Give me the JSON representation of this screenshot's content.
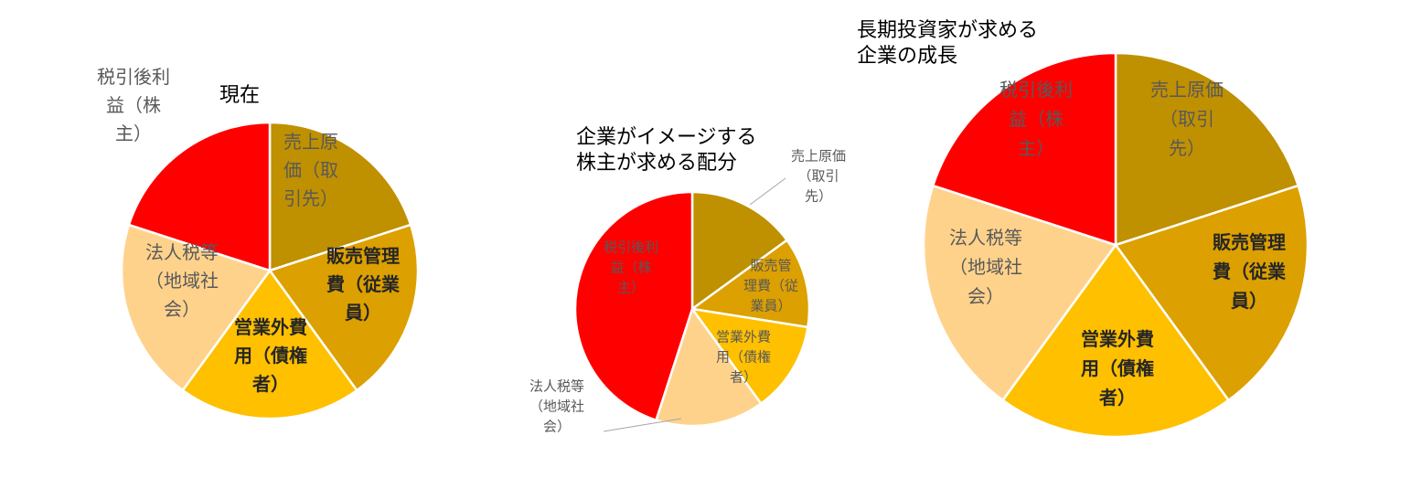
{
  "chart_data": [
    {
      "type": "pie",
      "title_lines": [
        "現在"
      ],
      "slices": [
        {
          "label_lines": [
            "売上原",
            "価（取",
            "引先）"
          ],
          "value": 20,
          "color": "#BF9000",
          "label_style": "normal"
        },
        {
          "label_lines": [
            "販売管理",
            "費（従業",
            "員）"
          ],
          "value": 20,
          "color": "#DCA000",
          "label_style": "bold"
        },
        {
          "label_lines": [
            "営業外費",
            "用（債権",
            "者）"
          ],
          "value": 20,
          "color": "#FFC000",
          "label_style": "bold"
        },
        {
          "label_lines": [
            "法人税等",
            "（地域社",
            "会）"
          ],
          "value": 20,
          "color": "#FFD28C",
          "label_style": "normal"
        },
        {
          "label_lines": [
            "税引後利",
            "益（株",
            "主）"
          ],
          "value": 20,
          "color": "#FF0000",
          "label_style": "normal"
        }
      ]
    },
    {
      "type": "pie",
      "title_lines": [
        "企業がイメージする",
        "株主が求める配分"
      ],
      "slices": [
        {
          "label_lines": [
            "売上原価",
            "（取引",
            "先）"
          ],
          "value": 15,
          "color": "#BF9000",
          "label_style": "normal"
        },
        {
          "label_lines": [
            "販売管",
            "理費（従",
            "業員）"
          ],
          "value": 12.5,
          "color": "#DCA000",
          "label_style": "normal"
        },
        {
          "label_lines": [
            "営業外費",
            "用（債権",
            "者）"
          ],
          "value": 12.5,
          "color": "#FFC000",
          "label_style": "normal"
        },
        {
          "label_lines": [
            "法人税等",
            "（地域社",
            "会）"
          ],
          "value": 15,
          "color": "#FFD28C",
          "label_style": "normal"
        },
        {
          "label_lines": [
            "税引後利",
            "益（株",
            "主）"
          ],
          "value": 45,
          "color": "#FF0000",
          "label_style": "normal"
        }
      ]
    },
    {
      "type": "pie",
      "title_lines": [
        "長期投資家が求める",
        "企業の成長"
      ],
      "slices": [
        {
          "label_lines": [
            "売上原価",
            "（取引",
            "先）"
          ],
          "value": 20,
          "color": "#BF9000",
          "label_style": "normal"
        },
        {
          "label_lines": [
            "販売管理",
            "費（従業",
            "員）"
          ],
          "value": 20,
          "color": "#DCA000",
          "label_style": "bold"
        },
        {
          "label_lines": [
            "営業外費",
            "用（債権",
            "者）"
          ],
          "value": 20,
          "color": "#FFC000",
          "label_style": "bold"
        },
        {
          "label_lines": [
            "法人税等",
            "（地域社",
            "会）"
          ],
          "value": 20,
          "color": "#FFD28C",
          "label_style": "normal"
        },
        {
          "label_lines": [
            "税引後利",
            "益（株",
            "主）"
          ],
          "value": 20,
          "color": "#FF0000",
          "label_style": "normal"
        }
      ]
    }
  ]
}
